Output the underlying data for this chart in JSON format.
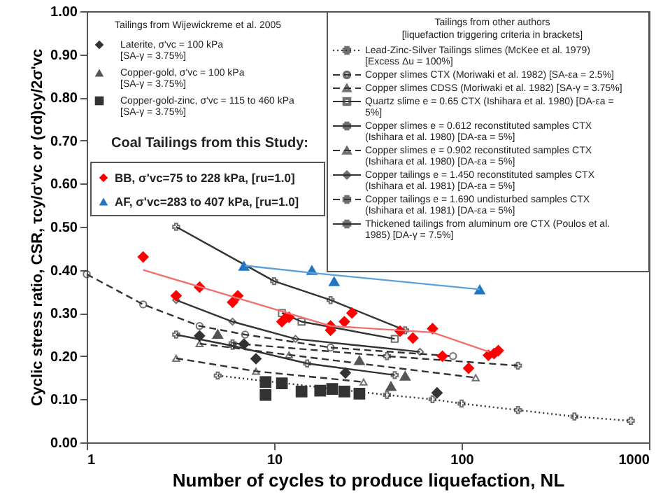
{
  "chart_data": {
    "type": "scatter",
    "xlabel": "Number of cycles to produce liquefaction, NL",
    "ylabel": "Cyclic stress ratio, CSR, τcy/σ'vc or (σd)cy/2σ'vc",
    "log": "x",
    "xlim": [
      1,
      1000
    ],
    "xticks": [
      1,
      10,
      100,
      1000
    ],
    "ylim": [
      0,
      1
    ],
    "yticks": [
      {
        "value": 0,
        "label": "0.00"
      },
      {
        "value": 0.1,
        "label": "0.10"
      },
      {
        "value": 0.2,
        "label": "0.20"
      },
      {
        "value": 0.3,
        "label": "0.30"
      },
      {
        "value": 0.4,
        "label": "0.40"
      },
      {
        "value": 0.5,
        "label": "0.50"
      },
      {
        "value": 0.6,
        "label": "0.60"
      },
      {
        "value": 0.7,
        "label": "0.70"
      },
      {
        "value": 0.8,
        "label": "0.80"
      },
      {
        "value": 0.9,
        "label": "0.90"
      },
      {
        "value": 1,
        "label": "1.00"
      }
    ],
    "grid": false,
    "legend": "top right",
    "annotations": [
      "Tailings from Wijewickreme et al. 2005",
      "Coal Tailings from this Study:",
      "Tailings from other authors",
      "[liquefaction triggering criteria in brackets]"
    ],
    "series": [
      {
        "name": "Lead-Zinc-Silver Tailings slimes (McKee et al. 1979) [Excess Δu = 100%]",
        "type": "line",
        "marker": "cross",
        "line_style": "dotted",
        "color": "#333333",
        "x": [
          5,
          40,
          70,
          100,
          200,
          400,
          800
        ],
        "values": [
          0.155,
          0.11,
          0.1,
          0.09,
          0.075,
          0.06,
          0.05
        ]
      },
      {
        "name": "Copper slimes CTX (Moriwaki et al. 1982) [SA-εa = 2.5%]",
        "type": "line",
        "marker": "circle",
        "line_style": "dashed",
        "color": "#333333",
        "x": [
          1,
          2,
          4,
          7,
          20,
          90
        ],
        "values": [
          0.39,
          0.32,
          0.27,
          0.25,
          0.22,
          0.2
        ]
      },
      {
        "name": "Copper slimes CDSS (Moriwaki et al. 1982) [SA-γ = 3.75%]",
        "type": "line",
        "marker": "triangle",
        "line_style": "dashed",
        "color": "#333333",
        "x": [
          3,
          8,
          30
        ],
        "values": [
          0.195,
          0.165,
          0.14
        ]
      },
      {
        "name": "Quartz slime e = 0.65 CTX (Ishihara et al. 1980) [DA-εa = 5%]",
        "type": "line",
        "marker": "square",
        "line_style": "solid",
        "color": "#333333",
        "x": [
          11,
          14,
          44
        ],
        "values": [
          0.3,
          0.28,
          0.24
        ]
      },
      {
        "name": "Copper slimes e = 0.612 reconstituted samples CTX (Ishihara et al. 1980) [DA-εa = 5%]",
        "type": "line",
        "marker": "cross",
        "line_style": "solid",
        "color": "#333333",
        "x": [
          3,
          6,
          15,
          44
        ],
        "values": [
          0.25,
          0.224,
          0.183,
          0.156
        ]
      },
      {
        "name": "Copper slimes e = 0.902 reconstituted samples CTX (Ishihara et al. 1980) [DA-εa = 5%]",
        "type": "line",
        "marker": "triangle",
        "line_style": "dashed",
        "color": "#333333",
        "x": [
          4,
          12,
          119
        ],
        "values": [
          0.229,
          0.203,
          0.15
        ]
      },
      {
        "name": "Copper tailings e = 1.450 reconstituted samples CTX (Ishihara et al. 1981) [DA-εa = 5%]",
        "type": "line",
        "marker": "diamond",
        "line_style": "solid",
        "color": "#333333",
        "x": [
          3,
          6,
          13,
          60
        ],
        "values": [
          0.33,
          0.28,
          0.24,
          0.21
        ]
      },
      {
        "name": "Copper tailings e = 1.690 undisturbed samples CTX (Ishihara et al. 1981) [DA-εa = 5%]",
        "type": "line",
        "marker": "cross",
        "line_style": "dashed",
        "color": "#333333",
        "x": [
          6,
          40,
          200
        ],
        "values": [
          0.23,
          0.2,
          0.178
        ]
      },
      {
        "name": "Thickened tailings from aluminum ore CTX (Poulos et al. 1985) [DA-γ = 7.5%]",
        "type": "line",
        "marker": "cross",
        "line_style": "solid",
        "color": "#333333",
        "x": [
          3,
          10,
          20,
          50
        ],
        "values": [
          0.5,
          0.374,
          0.33,
          0.26
        ]
      },
      {
        "name": "Laterite, σ'vc = 100 kPa [SA-γ = 3.75%]",
        "marker": "diamond",
        "color": "#333333",
        "x": [
          4,
          6.9,
          8,
          24,
          74
        ],
        "values": [
          0.247,
          0.228,
          0.194,
          0.161,
          0.115
        ]
      },
      {
        "name": "Copper-gold, σ'vc = 100 kPa [SA-γ = 3.75%]",
        "marker": "triangle",
        "color": "#555555",
        "x": [
          5,
          28.5,
          42,
          50
        ],
        "values": [
          0.252,
          0.191,
          0.131,
          0.155
        ]
      },
      {
        "name": "Copper-gold-zinc, σ'vc = 115 to 460 kPa [SA-γ = 3.75%]",
        "marker": "square",
        "color": "#333333",
        "x": [
          9,
          9,
          11,
          14,
          17.6,
          20.4,
          23.7,
          28.5
        ],
        "values": [
          0.14,
          0.11,
          0.137,
          0.118,
          0.12,
          0.124,
          0.118,
          0.113
        ]
      },
      {
        "name": "BB, σ'vc=75 to 228 kPa, [ru=1.0]",
        "marker": "diamond",
        "color": "#ff0000",
        "x": [
          2,
          3,
          4,
          6,
          6.4,
          11,
          11.6,
          12,
          20,
          20,
          23.7,
          26,
          47,
          55,
          70,
          79,
          109,
          139,
          149,
          157
        ],
        "values": [
          0.43,
          0.34,
          0.36,
          0.325,
          0.34,
          0.28,
          0.29,
          0.29,
          0.27,
          0.26,
          0.28,
          0.3,
          0.258,
          0.242,
          0.264,
          0.2,
          0.172,
          0.202,
          0.206,
          0.213
        ]
      },
      {
        "name": "AF, σ'vc=283 to 407 kPa, [ru=1.0]",
        "marker": "triangle",
        "color": "#1f77c4",
        "x": [
          6.9,
          15.9,
          20.9,
          125
        ],
        "values": [
          0.41,
          0.4,
          0.374,
          0.355
        ]
      },
      {
        "type": "line",
        "marker": "none",
        "line_style": "solid",
        "color": "#f07070",
        "x": [
          2,
          20,
          70,
          140
        ],
        "values": [
          0.4,
          0.27,
          0.255,
          0.21
        ]
      },
      {
        "type": "line",
        "marker": "none",
        "line_style": "solid",
        "color": "#5aa0dc",
        "x": [
          7,
          16,
          125
        ],
        "values": [
          0.41,
          0.393,
          0.355
        ]
      }
    ]
  }
}
